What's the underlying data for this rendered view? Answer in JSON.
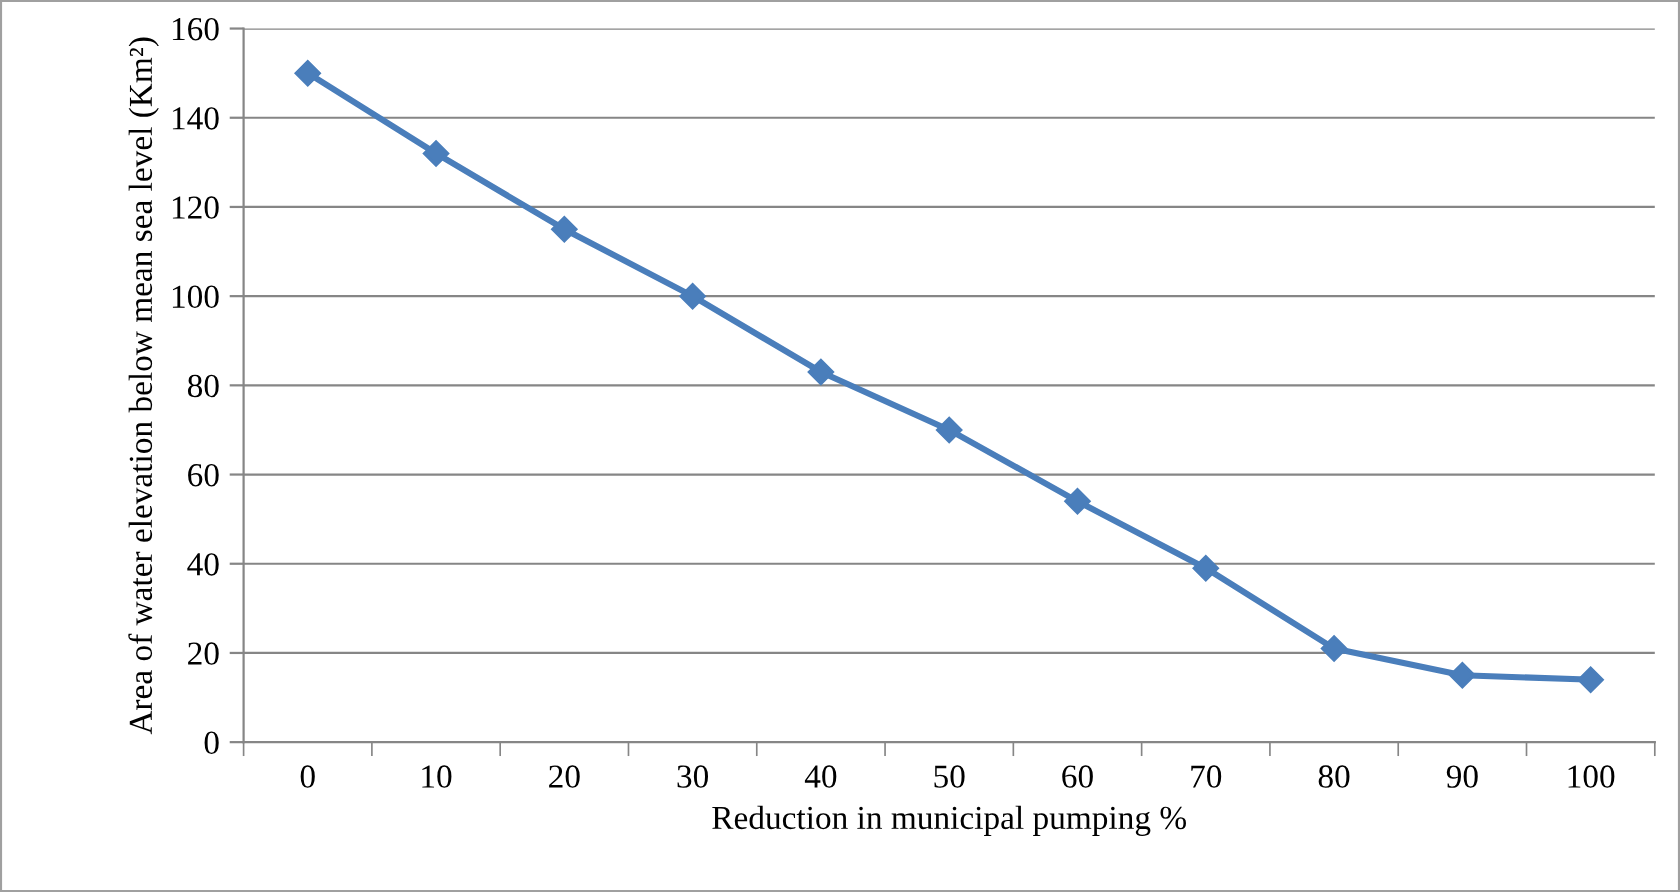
{
  "chart_data": {
    "type": "line",
    "xlabel": "Reduction in municipal pumping %",
    "ylabel": "Area of water elevation below mean sea level (Km²)",
    "categories": [
      "0",
      "10",
      "20",
      "30",
      "40",
      "50",
      "60",
      "70",
      "80",
      "90",
      "100"
    ],
    "series": [
      {
        "color": "#4a7ebb",
        "values": [
          150,
          132,
          115,
          100,
          83,
          70,
          54,
          39,
          21,
          15,
          14
        ]
      }
    ],
    "ylim": [
      0,
      160
    ],
    "yticks": [
      0,
      20,
      40,
      60,
      80,
      100,
      120,
      140,
      160
    ],
    "grid": "y",
    "marker": "diamond",
    "line_style": "solid",
    "legend": false
  }
}
